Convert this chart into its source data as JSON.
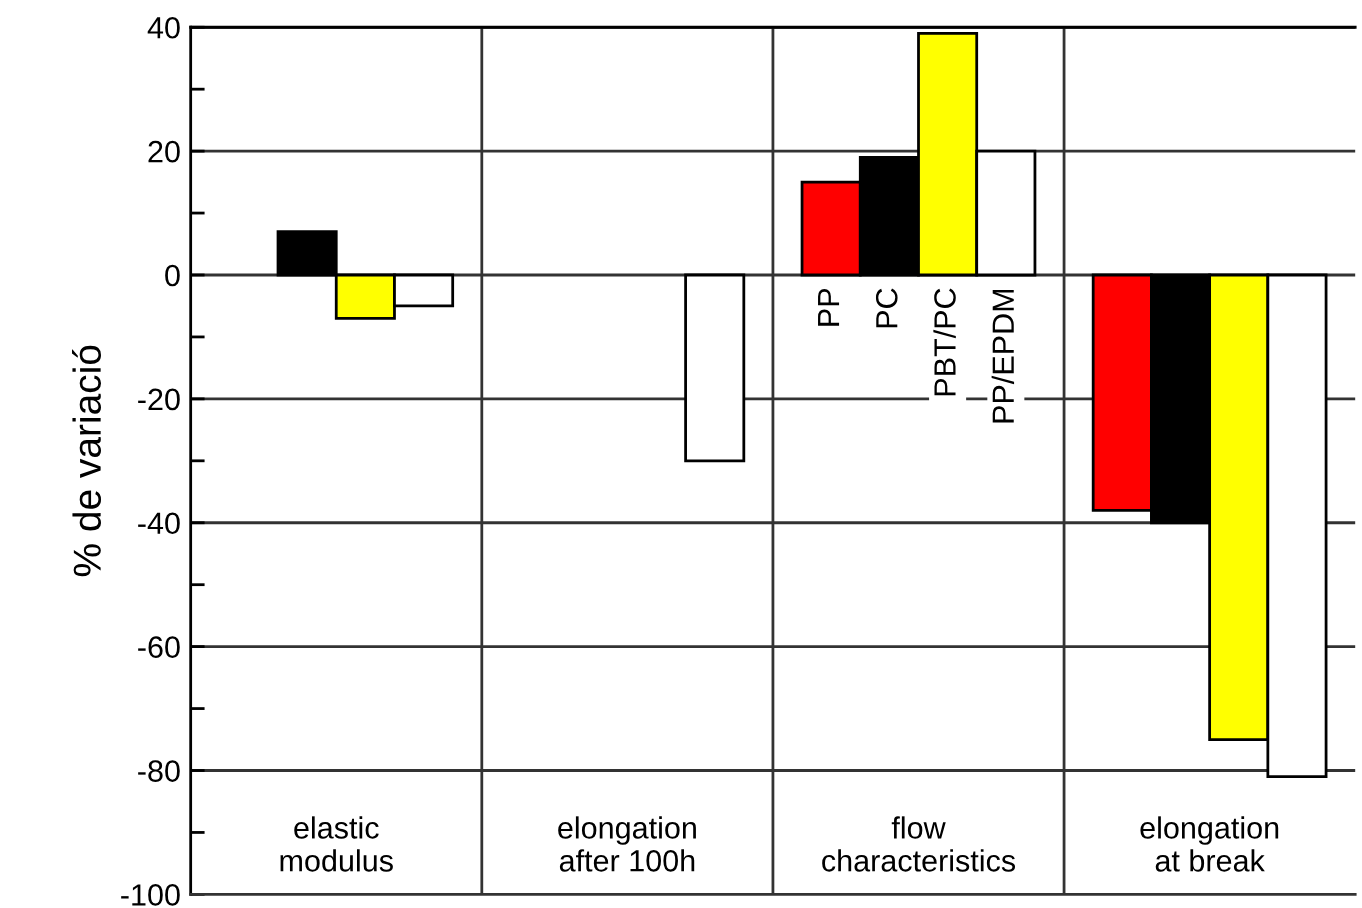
{
  "chart_data": {
    "type": "bar",
    "ylabel": "% de variació",
    "categories": [
      "elastic\nmodulus",
      "elongation\nafter 100h",
      "flow\ncharacteristics",
      "elongation\nat break"
    ],
    "series": [
      {
        "name": "PP",
        "color": "#ff0000",
        "values": [
          null,
          null,
          15,
          -38
        ]
      },
      {
        "name": "PC",
        "color": "#000000",
        "values": [
          7,
          null,
          19,
          -40
        ]
      },
      {
        "name": "PBT/PC",
        "color": "#ffff00",
        "values": [
          -7,
          null,
          39,
          -75
        ]
      },
      {
        "name": "PP/EPDM",
        "color": "#ffffff",
        "values": [
          -5,
          -30,
          20,
          -81
        ]
      }
    ],
    "ylim": [
      -100,
      40
    ],
    "yticks": [
      -100,
      {
        "value": -90,
        "label": null
      },
      -80,
      {
        "value": -70,
        "label": null
      },
      -60,
      {
        "value": -50,
        "label": null
      },
      -40,
      {
        "value": -30,
        "label": null
      },
      -20,
      {
        "value": -10,
        "label": null
      },
      0,
      {
        "value": 10,
        "label": null
      },
      20,
      {
        "value": 30,
        "label": null
      },
      40
    ],
    "grid": "y"
  }
}
